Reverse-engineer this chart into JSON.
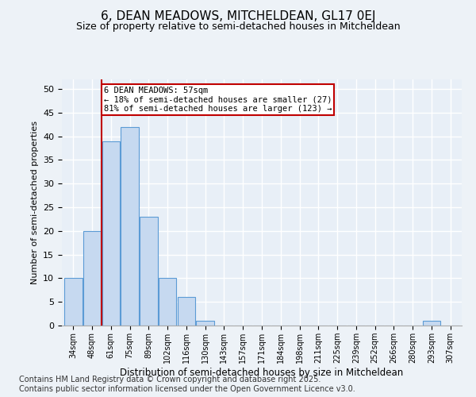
{
  "title": "6, DEAN MEADOWS, MITCHELDEAN, GL17 0EJ",
  "subtitle": "Size of property relative to semi-detached houses in Mitcheldean",
  "xlabel": "Distribution of semi-detached houses by size in Mitcheldean",
  "ylabel": "Number of semi-detached properties",
  "categories": [
    "34sqm",
    "48sqm",
    "61sqm",
    "75sqm",
    "89sqm",
    "102sqm",
    "116sqm",
    "130sqm",
    "143sqm",
    "157sqm",
    "171sqm",
    "184sqm",
    "198sqm",
    "211sqm",
    "225sqm",
    "239sqm",
    "252sqm",
    "266sqm",
    "280sqm",
    "293sqm",
    "307sqm"
  ],
  "values": [
    10,
    20,
    39,
    42,
    23,
    10,
    6,
    1,
    0,
    0,
    0,
    0,
    0,
    0,
    0,
    0,
    0,
    0,
    0,
    1,
    0
  ],
  "bar_color": "#c6d9f0",
  "bar_edge_color": "#5b9bd5",
  "annotation_line1": "6 DEAN MEADOWS: 57sqm",
  "annotation_line2": "← 18% of semi-detached houses are smaller (27)",
  "annotation_line3": "81% of semi-detached houses are larger (123) →",
  "annotation_box_color": "#ffffff",
  "annotation_box_edge_color": "#c00000",
  "ylim": [
    0,
    52
  ],
  "yticks": [
    0,
    5,
    10,
    15,
    20,
    25,
    30,
    35,
    40,
    45,
    50
  ],
  "footer": "Contains HM Land Registry data © Crown copyright and database right 2025.\nContains public sector information licensed under the Open Government Licence v3.0.",
  "bg_color": "#edf2f7",
  "plot_bg_color": "#e8eff7",
  "grid_color": "#ffffff",
  "title_fontsize": 11,
  "subtitle_fontsize": 9,
  "footer_fontsize": 7
}
